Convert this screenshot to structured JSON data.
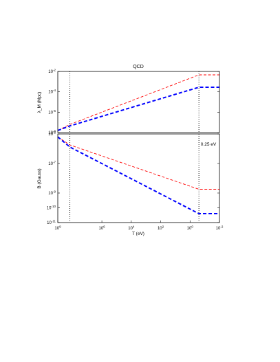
{
  "chart_data": [
    {
      "type": "line",
      "title": "QCD",
      "xlabel": "",
      "ylabel": "λ_M (Mpc)",
      "x_scale": "log",
      "y_scale": "log",
      "x_reversed": true,
      "xlim": [
        1000000000,
        0.01
      ],
      "ylim": [
        1e-08,
        0.01
      ],
      "y_ticks": [
        {
          "value": 0.01,
          "label": "10^{-2}"
        },
        {
          "value": 0.0001,
          "label": "10^{-4}"
        },
        {
          "value": 1e-06,
          "label": "10^{-6}"
        },
        {
          "value": 1e-08,
          "label": "10^{-8}"
        }
      ],
      "vertical_markers": [
        150000000,
        0.25
      ],
      "series": [
        {
          "color": "#ff0000",
          "dash": "dashed-thin",
          "x": [
            1000000000,
            150000000,
            0.25,
            0.01
          ],
          "y": [
            1.6e-08,
            6.3e-08,
            0.0046,
            0.0046
          ]
        },
        {
          "color": "#0000ff",
          "dash": "dashed-thick",
          "x": [
            1000000000,
            150000000,
            0.25,
            0.01
          ],
          "y": [
            1.6e-08,
            4.5e-08,
            0.00028,
            0.00028
          ]
        }
      ]
    },
    {
      "type": "line",
      "title": "",
      "xlabel": "T (eV)",
      "ylabel": "B (Gauss)",
      "x_scale": "log",
      "y_scale": "log",
      "x_reversed": true,
      "xlim": [
        1000000000,
        0.01
      ],
      "ylim": [
        1e-11,
        1e-05
      ],
      "x_ticks": [
        {
          "value": 1000000000,
          "label": "10^{9}"
        },
        {
          "value": 1000000,
          "label": "10^{6}"
        },
        {
          "value": 10000,
          "label": "10^{4}"
        },
        {
          "value": 100,
          "label": "10^{2}"
        },
        {
          "value": 1,
          "label": "10^{0}"
        },
        {
          "value": 0.01,
          "label": "10^{-2}"
        }
      ],
      "y_ticks": [
        {
          "value": 1e-05,
          "label": "10^{-5}"
        },
        {
          "value": 1e-07,
          "label": "10^{-7}"
        },
        {
          "value": 1e-09,
          "label": "10^{-9}"
        },
        {
          "value": 1e-10,
          "label": "10^{-10}"
        },
        {
          "value": 1e-11,
          "label": "10^{-11}"
        }
      ],
      "vertical_markers": [
        150000000,
        0.25
      ],
      "annotations": [
        {
          "text": "0.25 eV"
        }
      ],
      "series": [
        {
          "color": "#ff0000",
          "dash": "dashed-thin",
          "x": [
            1000000000,
            150000000,
            0.25,
            0.01
          ],
          "y": [
            6.3e-06,
            1.8e-06,
            1.8e-09,
            1.8e-09
          ]
        },
        {
          "color": "#0000ff",
          "dash": "dashed-thick",
          "x": [
            1000000000,
            150000000,
            0.25,
            0.01
          ],
          "y": [
            6.3e-06,
            1.3e-06,
            4e-11,
            4e-11
          ]
        }
      ]
    }
  ]
}
